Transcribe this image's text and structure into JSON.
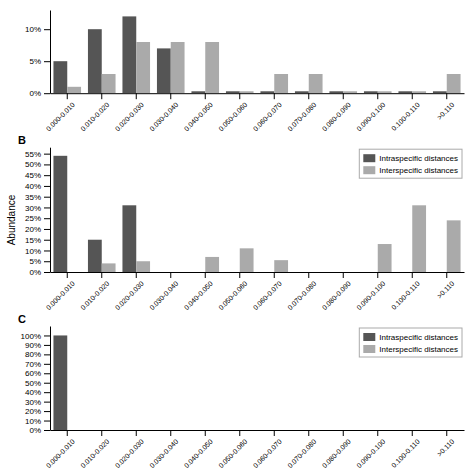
{
  "chart_data": [
    {
      "type": "bar",
      "categories": [
        "0.000-0.010",
        "0.010-0.020",
        "0.020-0.030",
        "0.030-0.040",
        "0.040-0.050",
        "0.050-0.060",
        "0.060-0.070",
        "0.070-0.080",
        "0.080-0.090",
        "0.090-0.100",
        "0.100-0.110",
        ">0.110"
      ],
      "series": [
        {
          "color": "#555555",
          "values": [
            5,
            10,
            12,
            7,
            0.3,
            0.3,
            0.3,
            0.3,
            0.3,
            0.3,
            0.3,
            0.3
          ]
        },
        {
          "color": "#aaaaaa",
          "values": [
            1,
            3,
            8,
            8,
            8,
            0.3,
            3,
            3,
            0.3,
            0.3,
            0.3,
            3
          ]
        }
      ],
      "ylim": [
        0,
        13
      ],
      "yticks": [
        {
          "value": 0,
          "label": "0%"
        },
        {
          "value": 5,
          "label": "5%"
        },
        {
          "value": 10,
          "label": "10%"
        }
      ],
      "grid": false
    },
    {
      "type": "bar",
      "title": "B",
      "y_label": "Abundance",
      "categories": [
        "0.000-0.010",
        "0.010-0.020",
        "0.020-0.030",
        "0.030-0.040",
        "0.040-0.050",
        "0.050-0.060",
        "0.060-0.070",
        "0.070-0.080",
        "0.080-0.090",
        "0.090-0.100",
        "0.100-0.110",
        ">0.110"
      ],
      "series": [
        {
          "name": "Intraspecific distances",
          "color": "#555555",
          "values": [
            54,
            15,
            31,
            0,
            0,
            0,
            0,
            0,
            0,
            0,
            0,
            0
          ]
        },
        {
          "name": "Interspecific distances",
          "color": "#aaaaaa",
          "values": [
            0,
            4,
            5,
            0,
            7,
            11,
            5.5,
            0,
            0,
            13,
            31,
            24
          ]
        }
      ],
      "ylim": [
        0,
        58
      ],
      "yticks": [
        {
          "value": 0,
          "label": "0%"
        },
        {
          "value": 5,
          "label": "5%"
        },
        {
          "value": 10,
          "label": "10%"
        },
        {
          "value": 15,
          "label": "15%"
        },
        {
          "value": 20,
          "label": "20%"
        },
        {
          "value": 25,
          "label": "25%"
        },
        {
          "value": 30,
          "label": "30%"
        },
        {
          "value": 35,
          "label": "35%"
        },
        {
          "value": 40,
          "label": "40%"
        },
        {
          "value": 45,
          "label": "45%"
        },
        {
          "value": 50,
          "label": "50%"
        },
        {
          "value": 55,
          "label": "55%"
        }
      ],
      "legend": "upper right",
      "grid": false
    },
    {
      "type": "bar",
      "title": "C",
      "categories": [
        "0.000-0.010",
        "0.010-0.020",
        "0.020-0.030",
        "0.030-0.040",
        "0.040-0.050",
        "0.050-0.060",
        "0.060-0.070",
        "0.070-0.080",
        "0.080-0.090",
        "0.090-0.100",
        "0.100-0.110",
        ">0.110"
      ],
      "series": [
        {
          "name": "Intraspecific distances",
          "color": "#555555",
          "values": [
            100,
            0,
            0,
            0,
            0,
            0,
            0,
            0,
            0,
            0,
            0,
            0
          ]
        },
        {
          "name": "Interspecific distances",
          "color": "#aaaaaa",
          "values": [
            0,
            0,
            0,
            0,
            0,
            0,
            0,
            0,
            0,
            0,
            0,
            0
          ]
        }
      ],
      "ylim": [
        0,
        110
      ],
      "yticks": [
        {
          "value": 0,
          "label": "0%"
        },
        {
          "value": 10,
          "label": "10%"
        },
        {
          "value": 20,
          "label": "20%"
        },
        {
          "value": 30,
          "label": "30%"
        },
        {
          "value": 40,
          "label": "40%"
        },
        {
          "value": 50,
          "label": "50%"
        },
        {
          "value": 60,
          "label": "60%"
        },
        {
          "value": 70,
          "label": "70%"
        },
        {
          "value": 80,
          "label": "80%"
        },
        {
          "value": 90,
          "label": "90%"
        },
        {
          "value": 100,
          "label": "100%"
        }
      ],
      "legend": "upper right",
      "grid": false
    }
  ]
}
